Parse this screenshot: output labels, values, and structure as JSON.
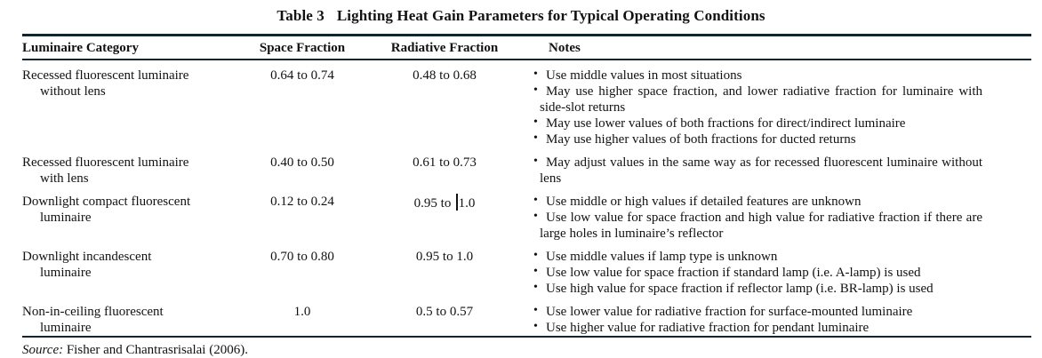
{
  "title": {
    "label": "Table 3",
    "text": "Lighting Heat Gain Parameters for Typical Operating Conditions"
  },
  "columns": [
    "Luminaire Category",
    "Space Fraction",
    "Radiative Fraction",
    "Notes"
  ],
  "rows": [
    {
      "category": [
        "Recessed fluorescent luminaire",
        "without lens"
      ],
      "space_fraction": "0.64 to 0.74",
      "radiative_fraction": "0.48 to 0.68",
      "notes": [
        "Use middle values in most situations",
        "May use higher space fraction, and lower radiative fraction for luminaire with side-slot returns",
        "May use lower values of both fractions for direct/indirect luminaire",
        "May use higher values of both fractions for ducted returns"
      ]
    },
    {
      "category": [
        "Recessed fluorescent luminaire",
        "with lens"
      ],
      "space_fraction": "0.40 to 0.50",
      "radiative_fraction": "0.61 to 0.73",
      "notes": [
        "May adjust values in the same way as for recessed fluorescent luminaire without lens"
      ]
    },
    {
      "category": [
        "Downlight compact fluorescent",
        "luminaire"
      ],
      "space_fraction": "0.12 to 0.24",
      "radiative_fraction": "0.95 to 1.0",
      "text_cursor_before": "1.0",
      "notes": [
        "Use middle or high values if detailed features are unknown",
        "Use low value for space fraction and high value for radiative fraction if there are large holes in luminaire’s reflector"
      ]
    },
    {
      "category": [
        "Downlight incandescent",
        "luminaire"
      ],
      "space_fraction": "0.70 to 0.80",
      "radiative_fraction": "0.95 to 1.0",
      "notes": [
        "Use middle values if lamp type is unknown",
        "Use low value for space fraction if standard lamp (i.e. A-lamp) is used",
        "Use high value for space fraction if reflector lamp (i.e. BR-lamp) is used"
      ]
    },
    {
      "category": [
        "Non-in-ceiling fluorescent",
        "luminaire"
      ],
      "space_fraction": "1.0",
      "radiative_fraction": "0.5 to 0.57",
      "notes": [
        "Use lower value for radiative fraction for surface-mounted luminaire",
        "Use higher value for radiative fraction for pendant luminaire"
      ]
    }
  ],
  "source": {
    "label": "Source:",
    "text": "Fisher and Chantrasrisalai (2006)."
  },
  "colors": {
    "text": "#121212",
    "rule": "#13242e",
    "background": "#ffffff"
  }
}
